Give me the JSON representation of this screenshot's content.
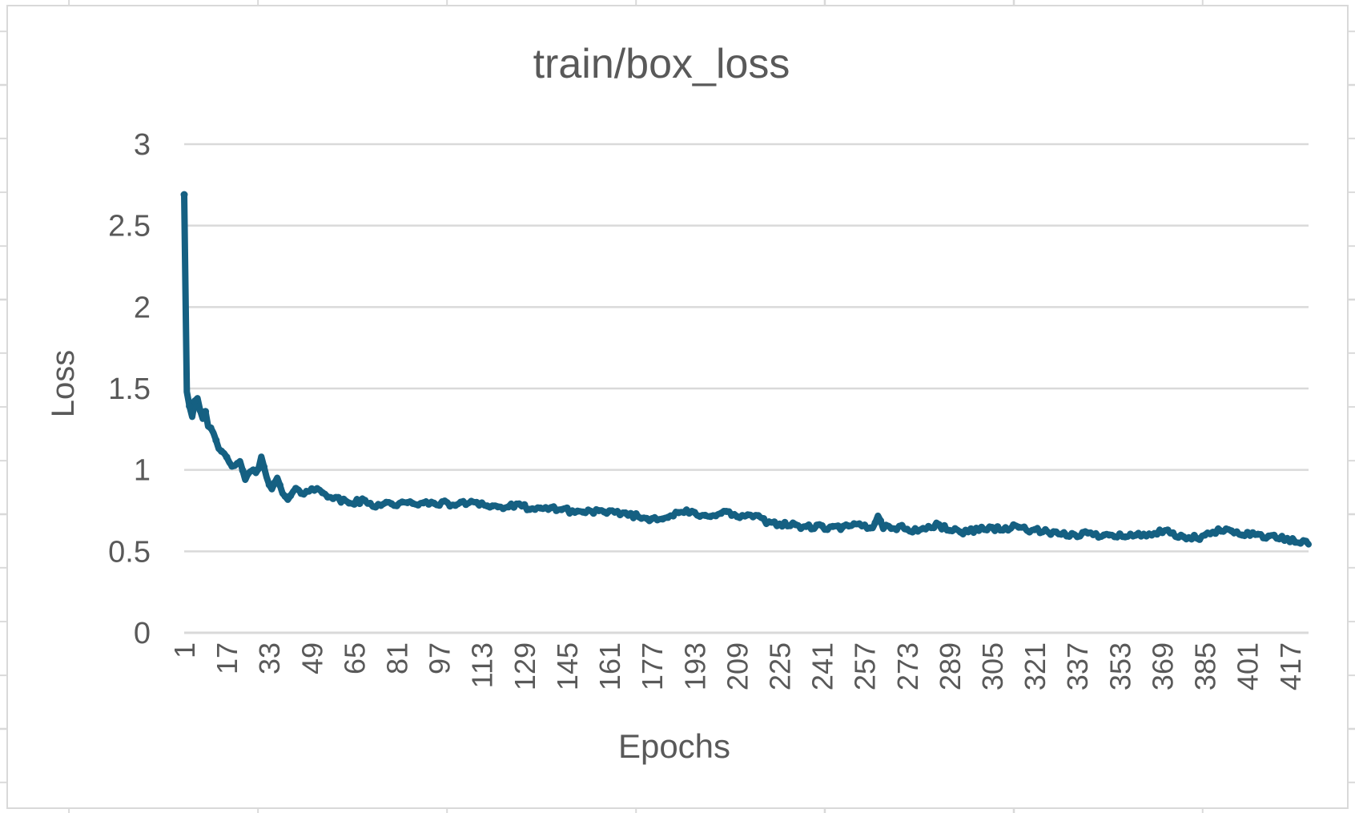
{
  "chart_data": {
    "type": "line",
    "title": "train/box_loss",
    "xlabel": "Epochs",
    "ylabel": "Loss",
    "legend": "none",
    "grid": "horizontal",
    "ylim": [
      0,
      3
    ],
    "x_range": [
      1,
      424
    ],
    "x_tick_start": 1,
    "x_tick_step": 16,
    "x_ticks": [
      "1",
      "17",
      "33",
      "49",
      "65",
      "81",
      "97",
      "113",
      "129",
      "145",
      "161",
      "177",
      "193",
      "209",
      "225",
      "241",
      "257",
      "273",
      "289",
      "305",
      "321",
      "337",
      "353",
      "369",
      "385",
      "401",
      "417"
    ],
    "y_ticks": [
      {
        "label": "0",
        "value": 0
      },
      {
        "label": "0.5",
        "value": 0.5
      },
      {
        "label": "1",
        "value": 1
      },
      {
        "label": "1.5",
        "value": 1.5
      },
      {
        "label": "2",
        "value": 2
      },
      {
        "label": "2.5",
        "value": 2.5
      },
      {
        "label": "3",
        "value": 3
      }
    ],
    "line_color": "#156082",
    "text_color": "#595959",
    "gridline_color": "#d9d9d9",
    "line_width": 8,
    "marker_radius": 4.5,
    "noise_amplitude": 0.017,
    "noise_seed": 42,
    "series": [
      {
        "name": "train/box_loss",
        "points": [
          [
            1,
            2.69
          ],
          [
            2,
            1.48
          ],
          [
            3,
            1.4
          ],
          [
            4,
            1.34
          ],
          [
            5,
            1.42
          ],
          [
            6,
            1.45
          ],
          [
            7,
            1.37
          ],
          [
            8,
            1.33
          ],
          [
            9,
            1.36
          ],
          [
            10,
            1.28
          ],
          [
            12,
            1.21
          ],
          [
            14,
            1.13
          ],
          [
            16,
            1.09
          ],
          [
            18,
            1.06
          ],
          [
            20,
            1.01
          ],
          [
            22,
            1.04
          ],
          [
            24,
            0.95
          ],
          [
            26,
            1.0
          ],
          [
            28,
            0.97
          ],
          [
            30,
            1.07
          ],
          [
            32,
            0.97
          ],
          [
            34,
            0.88
          ],
          [
            36,
            0.94
          ],
          [
            38,
            0.86
          ],
          [
            40,
            0.81
          ],
          [
            42,
            0.86
          ],
          [
            44,
            0.88
          ],
          [
            46,
            0.86
          ],
          [
            48,
            0.88
          ],
          [
            50,
            0.87
          ],
          [
            52,
            0.88
          ],
          [
            54,
            0.86
          ],
          [
            56,
            0.84
          ],
          [
            58,
            0.82
          ],
          [
            60,
            0.81
          ],
          [
            64,
            0.8
          ],
          [
            68,
            0.81
          ],
          [
            72,
            0.78
          ],
          [
            76,
            0.8
          ],
          [
            80,
            0.79
          ],
          [
            84,
            0.79
          ],
          [
            88,
            0.8
          ],
          [
            92,
            0.79
          ],
          [
            96,
            0.8
          ],
          [
            100,
            0.79
          ],
          [
            105,
            0.79
          ],
          [
            110,
            0.81
          ],
          [
            115,
            0.78
          ],
          [
            120,
            0.77
          ],
          [
            125,
            0.78
          ],
          [
            130,
            0.77
          ],
          [
            135,
            0.75
          ],
          [
            140,
            0.77
          ],
          [
            145,
            0.75
          ],
          [
            150,
            0.74
          ],
          [
            155,
            0.75
          ],
          [
            160,
            0.73
          ],
          [
            165,
            0.74
          ],
          [
            170,
            0.72
          ],
          [
            175,
            0.7
          ],
          [
            180,
            0.71
          ],
          [
            185,
            0.72
          ],
          [
            190,
            0.75
          ],
          [
            195,
            0.71
          ],
          [
            200,
            0.73
          ],
          [
            205,
            0.74
          ],
          [
            210,
            0.71
          ],
          [
            215,
            0.72
          ],
          [
            220,
            0.68
          ],
          [
            225,
            0.67
          ],
          [
            230,
            0.66
          ],
          [
            235,
            0.65
          ],
          [
            240,
            0.65
          ],
          [
            245,
            0.64
          ],
          [
            250,
            0.65
          ],
          [
            255,
            0.66
          ],
          [
            260,
            0.64
          ],
          [
            262,
            0.73
          ],
          [
            264,
            0.65
          ],
          [
            268,
            0.65
          ],
          [
            272,
            0.64
          ],
          [
            276,
            0.63
          ],
          [
            280,
            0.64
          ],
          [
            284,
            0.66
          ],
          [
            288,
            0.64
          ],
          [
            292,
            0.62
          ],
          [
            296,
            0.62
          ],
          [
            300,
            0.64
          ],
          [
            305,
            0.64
          ],
          [
            310,
            0.64
          ],
          [
            315,
            0.65
          ],
          [
            320,
            0.63
          ],
          [
            325,
            0.62
          ],
          [
            330,
            0.6
          ],
          [
            335,
            0.6
          ],
          [
            340,
            0.61
          ],
          [
            345,
            0.6
          ],
          [
            350,
            0.61
          ],
          [
            355,
            0.59
          ],
          [
            360,
            0.6
          ],
          [
            365,
            0.61
          ],
          [
            370,
            0.62
          ],
          [
            375,
            0.59
          ],
          [
            380,
            0.58
          ],
          [
            385,
            0.59
          ],
          [
            390,
            0.63
          ],
          [
            395,
            0.62
          ],
          [
            400,
            0.61
          ],
          [
            405,
            0.6
          ],
          [
            410,
            0.59
          ],
          [
            415,
            0.575
          ],
          [
            420,
            0.56
          ],
          [
            424,
            0.55
          ]
        ]
      }
    ]
  }
}
